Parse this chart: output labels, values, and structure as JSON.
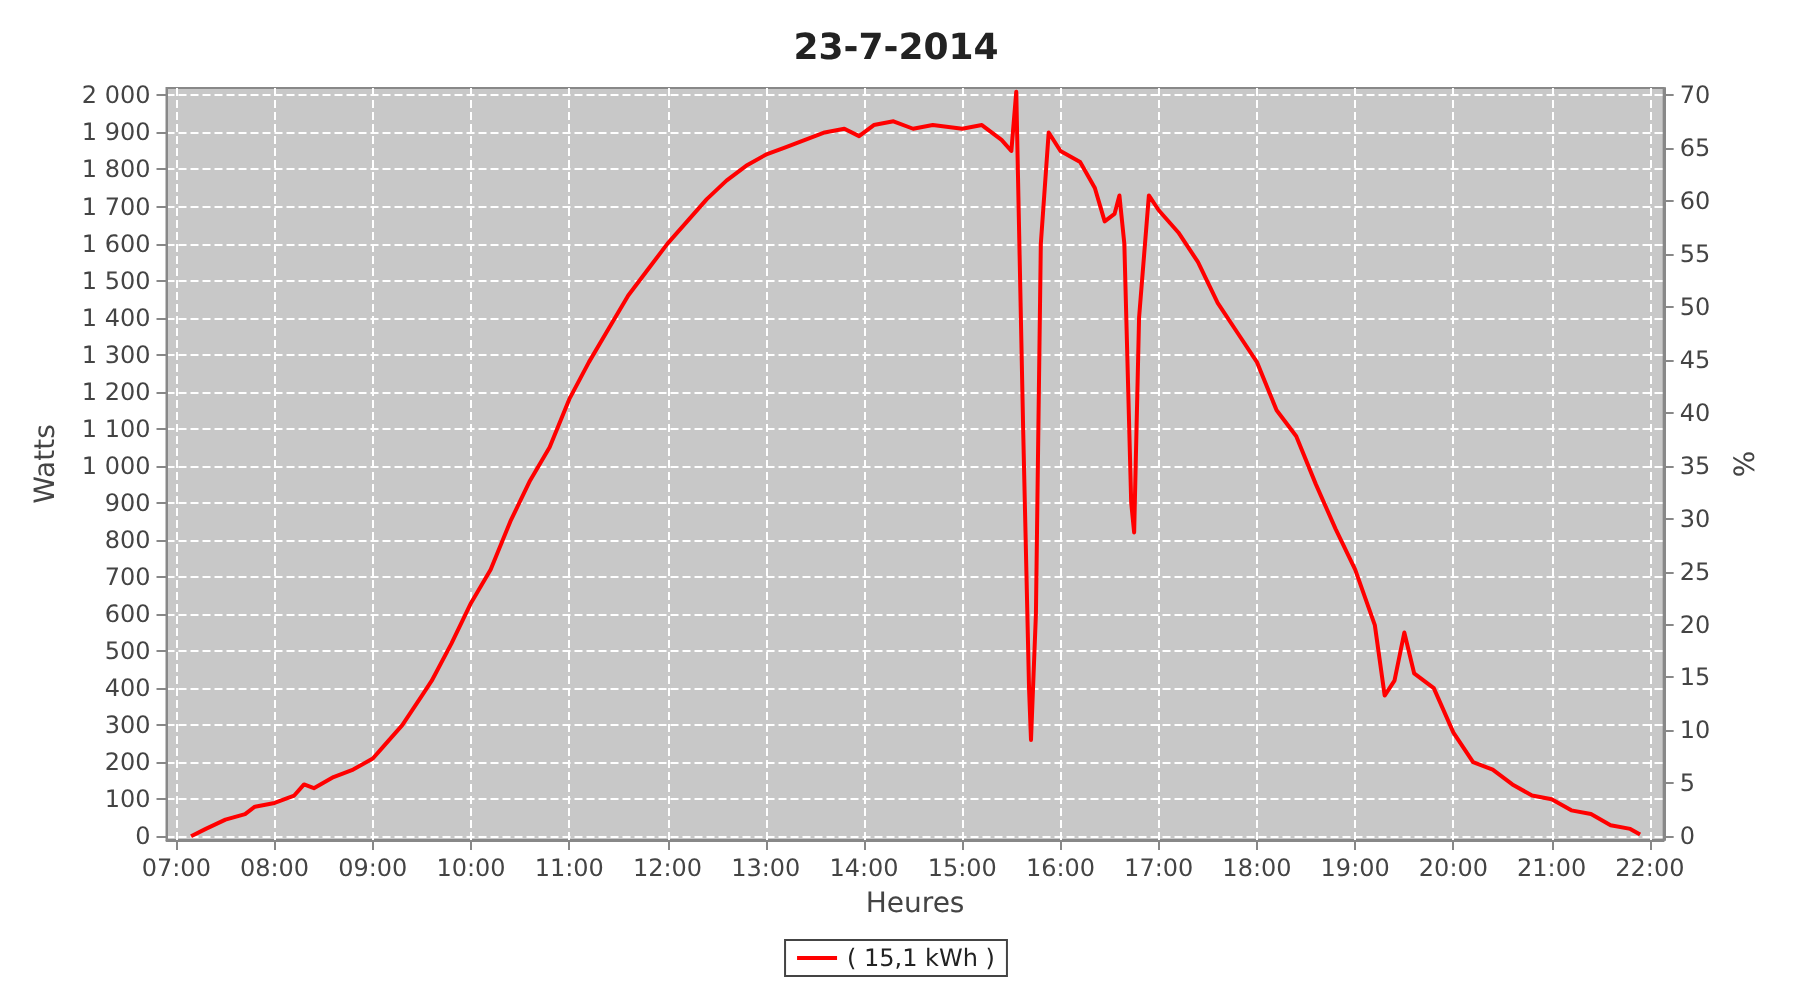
{
  "chart_data": {
    "type": "line",
    "title": "23-7-2014",
    "xlabel": "Heures",
    "ylabel": "Watts",
    "y2label": "%",
    "x": [
      7.15,
      7.3,
      7.5,
      7.7,
      7.8,
      8.0,
      8.2,
      8.3,
      8.4,
      8.6,
      8.8,
      9.0,
      9.1,
      9.3,
      9.5,
      9.6,
      9.8,
      10.0,
      10.2,
      10.4,
      10.6,
      10.8,
      11.0,
      11.2,
      11.4,
      11.6,
      11.8,
      12.0,
      12.2,
      12.4,
      12.6,
      12.8,
      13.0,
      13.2,
      13.4,
      13.6,
      13.8,
      13.95,
      14.1,
      14.3,
      14.5,
      14.7,
      15.0,
      15.2,
      15.4,
      15.5,
      15.55,
      15.62,
      15.68,
      15.7,
      15.75,
      15.8,
      15.88,
      16.0,
      16.2,
      16.35,
      16.45,
      16.55,
      16.6,
      16.65,
      16.72,
      16.75,
      16.8,
      16.9,
      17.0,
      17.2,
      17.4,
      17.6,
      17.8,
      18.0,
      18.2,
      18.4,
      18.6,
      18.8,
      19.0,
      19.2,
      19.3,
      19.4,
      19.5,
      19.6,
      19.8,
      20.0,
      20.2,
      20.4,
      20.6,
      20.8,
      21.0,
      21.2,
      21.4,
      21.6,
      21.8,
      21.9
    ],
    "series": [
      {
        "name": "( 15,1 kWh )",
        "color": "#ff0000",
        "values": [
          0,
          20,
          45,
          60,
          80,
          90,
          110,
          140,
          130,
          160,
          180,
          210,
          240,
          300,
          380,
          420,
          520,
          630,
          720,
          850,
          960,
          1050,
          1180,
          1280,
          1370,
          1460,
          1530,
          1600,
          1660,
          1720,
          1770,
          1810,
          1840,
          1860,
          1880,
          1900,
          1910,
          1890,
          1920,
          1930,
          1910,
          1920,
          1910,
          1920,
          1880,
          1850,
          2010,
          1100,
          400,
          260,
          600,
          1600,
          1900,
          1850,
          1820,
          1750,
          1660,
          1680,
          1730,
          1600,
          900,
          820,
          1400,
          1730,
          1690,
          1630,
          1550,
          1440,
          1360,
          1280,
          1150,
          1080,
          950,
          830,
          720,
          570,
          380,
          420,
          550,
          440,
          400,
          280,
          200,
          180,
          140,
          110,
          100,
          70,
          60,
          30,
          20,
          5
        ]
      }
    ],
    "xlim": [
      6.9,
      22.14
    ],
    "xticks": [
      {
        "value": 7,
        "label": "07:00"
      },
      {
        "value": 8,
        "label": "08:00"
      },
      {
        "value": 9,
        "label": "09:00"
      },
      {
        "value": 10,
        "label": "10:00"
      },
      {
        "value": 11,
        "label": "11:00"
      },
      {
        "value": 12,
        "label": "12:00"
      },
      {
        "value": 13,
        "label": "13:00"
      },
      {
        "value": 14,
        "label": "14:00"
      },
      {
        "value": 15,
        "label": "15:00"
      },
      {
        "value": 16,
        "label": "16:00"
      },
      {
        "value": 17,
        "label": "17:00"
      },
      {
        "value": 18,
        "label": "18:00"
      },
      {
        "value": 19,
        "label": "19:00"
      },
      {
        "value": 20,
        "label": "20:00"
      },
      {
        "value": 21,
        "label": "21:00"
      },
      {
        "value": 22,
        "label": "22:00"
      }
    ],
    "ylim": [
      -10,
      2020
    ],
    "yticks": [
      0,
      100,
      200,
      300,
      400,
      500,
      600,
      700,
      800,
      900,
      {
        "value": 1000,
        "label": "1 000"
      },
      {
        "value": 1100,
        "label": "1 100"
      },
      {
        "value": 1200,
        "label": "1 200"
      },
      {
        "value": 1300,
        "label": "1 300"
      },
      {
        "value": 1400,
        "label": "1 400"
      },
      {
        "value": 1500,
        "label": "1 500"
      },
      {
        "value": 1600,
        "label": "1 600"
      },
      {
        "value": 1700,
        "label": "1 700"
      },
      {
        "value": 1800,
        "label": "1 800"
      },
      {
        "value": 1900,
        "label": "1 900"
      },
      {
        "value": 2000,
        "label": "2 000"
      }
    ],
    "y2lim": [
      -0.36,
      70.7
    ],
    "y2ticks": [
      0,
      5,
      10,
      15,
      20,
      25,
      30,
      35,
      40,
      45,
      50,
      55,
      60,
      65,
      70
    ],
    "grid": true,
    "legend": "bottom",
    "marker": "none",
    "line_style": "solid"
  }
}
